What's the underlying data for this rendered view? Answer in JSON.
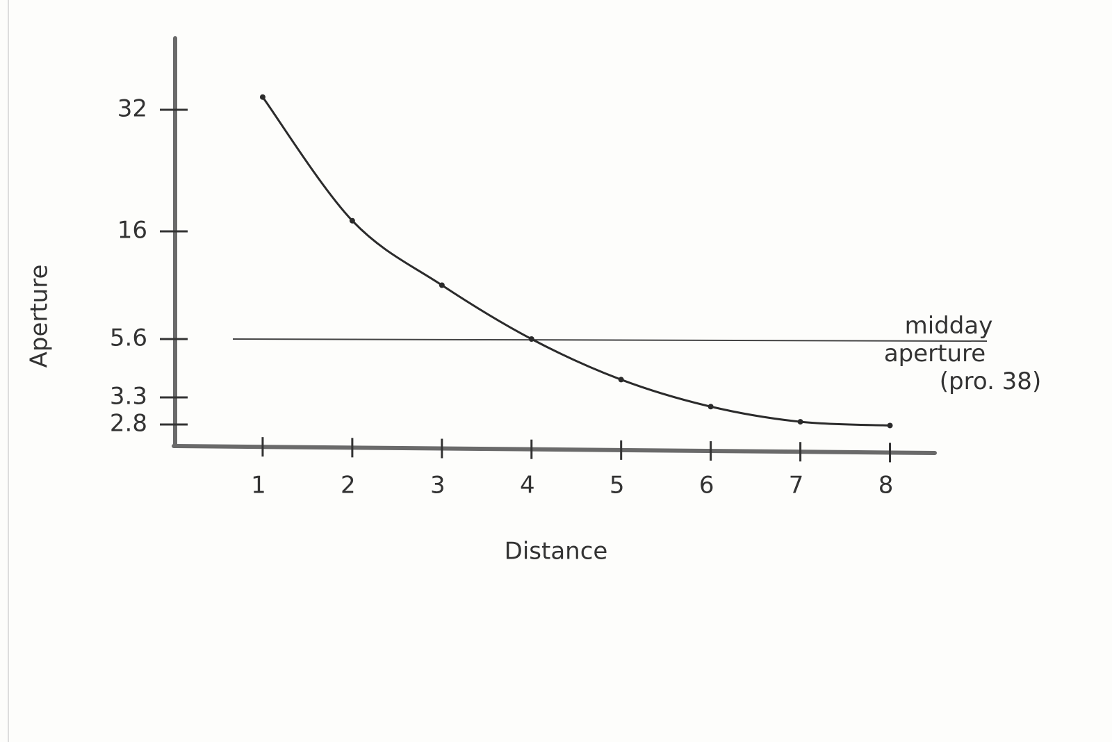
{
  "chart_data": {
    "type": "line",
    "x_label": "Distance",
    "y_label": "Aperture",
    "x": [
      1,
      2,
      3,
      4,
      5,
      6,
      7,
      8
    ],
    "series": [
      {
        "color": "#2b2b2b",
        "values": [
          33.6,
          17.4,
          10.8,
          5.6,
          4.0,
          3.13,
          2.85,
          2.78
        ]
      }
    ],
    "xlim": [
      0,
      8.5
    ],
    "xticks": [
      1,
      2,
      3,
      4,
      5,
      6,
      7,
      8
    ],
    "ylim": [
      2.4,
      41
    ],
    "yticks": [
      2.8,
      3.3,
      5.6,
      16,
      32
    ],
    "reference_line": {
      "value": 5.6,
      "label": [
        "midday",
        "aperture",
        "(pro. 38)"
      ]
    }
  }
}
